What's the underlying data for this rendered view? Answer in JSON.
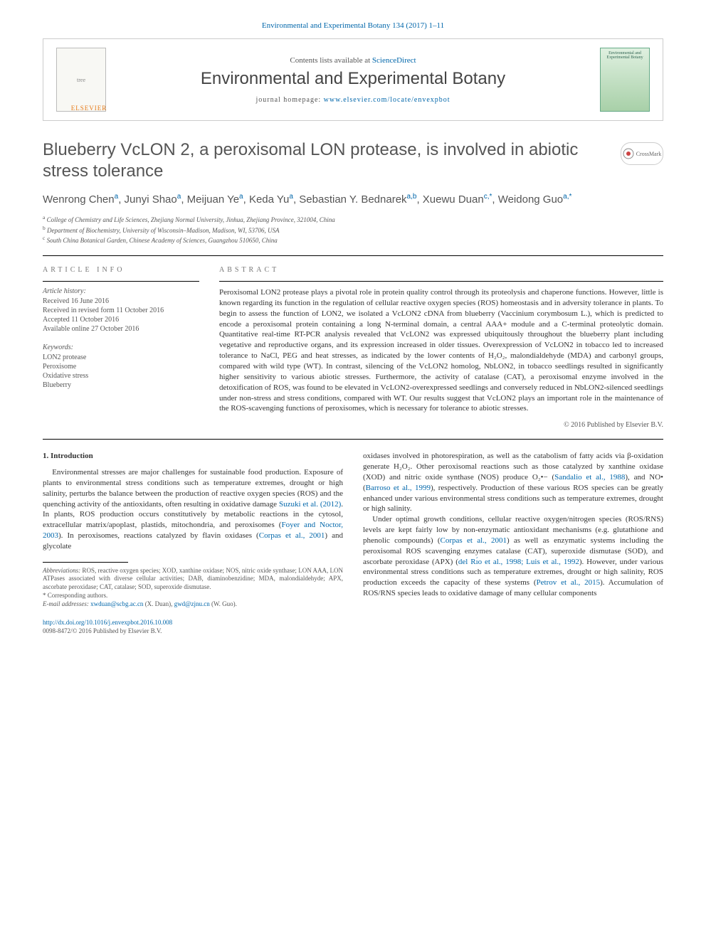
{
  "top_link": {
    "prefix": "",
    "journal": "Environmental and Experimental Botany 134 (2017) 1–11",
    "href": "#"
  },
  "header": {
    "contents_prefix": "Contents lists available at ",
    "contents_link": "ScienceDirect",
    "journal_name": "Environmental and Experimental Botany",
    "homepage_prefix": "journal homepage: ",
    "homepage_link": "www.elsevier.com/locate/envexpbot",
    "elsevier": "ELSEVIER",
    "cover_label": "Environmental and Experimental Botany"
  },
  "title": "Blueberry VcLON 2, a peroxisomal LON protease, is involved in abiotic stress tolerance",
  "crossmark": "CrossMark",
  "authors_html": "Wenrong Chen<sup>a</sup>, Junyi Shao<sup>a</sup>, Meijuan Ye<sup>a</sup>, Keda Yu<sup>a</sup>, Sebastian Y. Bednarek<sup>a,b</sup>, Xuewu Duan<sup>c,*</sup>, Weidong Guo<sup>a,*</sup>",
  "affiliations": {
    "a": "College of Chemistry and Life Sciences, Zhejiang Normal University, Jinhua, Zhejiang Province, 321004, China",
    "b": "Department of Biochemistry, University of Wisconsin–Madison, Madison, WI, 53706, USA",
    "c": "South China Botanical Garden, Chinese Academy of Sciences, Guangzhou 510650, China"
  },
  "article_info": {
    "label": "ARTICLE INFO",
    "history_label": "Article history:",
    "history": [
      "Received 16 June 2016",
      "Received in revised form 11 October 2016",
      "Accepted 11 October 2016",
      "Available online 27 October 2016"
    ],
    "keywords_label": "Keywords:",
    "keywords": [
      "LON2 protease",
      "Peroxisome",
      "Oxidative stress",
      "Blueberry"
    ]
  },
  "abstract": {
    "label": "ABSTRACT",
    "text": "Peroxisomal LON2 protease plays a pivotal role in protein quality control through its proteolysis and chaperone functions. However, little is known regarding its function in the regulation of cellular reactive oxygen species (ROS) homeostasis and in adversity tolerance in plants. To begin to assess the function of LON2, we isolated a VcLON2 cDNA from blueberry (Vaccinium corymbosum L.), which is predicted to encode a peroxisomal protein containing a long N-terminal domain, a central AAA+ module and a C-terminal proteolytic domain. Quantitative real-time RT-PCR analysis revealed that VcLON2 was expressed ubiquitously throughout the blueberry plant including vegetative and reproductive organs, and its expression increased in older tissues. Overexpression of VcLON2 in tobacco led to increased tolerance to NaCl, PEG and heat stresses, as indicated by the lower contents of H₂O₂, malondialdehyde (MDA) and carbonyl groups, compared with wild type (WT). In contrast, silencing of the VcLON2 homolog, NbLON2, in tobacco seedlings resulted in significantly higher sensitivity to various abiotic stresses. Furthermore, the activity of catalase (CAT), a peroxisomal enzyme involved in the detoxification of ROS, was found to be elevated in VcLON2-overexpressed seedlings and conversely reduced in NbLON2-silenced seedlings under non-stress and stress conditions, compared with WT. Our results suggest that VcLON2 plays an important role in the maintenance of the ROS-scavenging functions of peroxisomes, which is necessary for tolerance to abiotic stresses.",
    "copyright": "© 2016 Published by Elsevier B.V."
  },
  "intro": {
    "heading": "1. Introduction",
    "col1_p1_pre": "Environmental stresses are major challenges for sustainable food production. Exposure of plants to environmental stress conditions such as temperature extremes, drought or high salinity, perturbs the balance between the production of reactive oxygen species (ROS) and the quenching activity of the antioxidants, often resulting in oxidative damage ",
    "col1_p1_link1": "Suzuki et al. (2012)",
    "col1_p1_mid1": ". In plants, ROS production occurs constitutively by metabolic reactions in the cytosol, extracellular matrix/apoplast, plastids, mitochondria, and peroxisomes (",
    "col1_p1_link2": "Foyer and Noctor, 2003",
    "col1_p1_mid2": "). In peroxisomes, reactions catalyzed by flavin oxidases (",
    "col1_p1_link3": "Corpas et al., 2001",
    "col1_p1_post": ") and glycolate",
    "col2_p1_pre": "oxidases involved in photorespiration, as well as the catabolism of fatty acids via β-oxidation generate H₂O₂. Other peroxisomal reactions such as those catalyzed by xanthine oxidase (XOD) and nitric oxide synthase (NOS) produce O₂•− (",
    "col2_p1_link1": "Sandalio et al., 1988",
    "col2_p1_mid1": "), and NO• (",
    "col2_p1_link2": "Barroso et al., 1999",
    "col2_p1_post1": "), respectively. Production of these various ROS species can be greatly enhanced under various environmental stress conditions such as temperature extremes, drought or high salinity.",
    "col2_p2_pre": "Under optimal growth conditions, cellular reactive oxygen/nitrogen species (ROS/RNS) levels are kept fairly low by non-enzymatic antioxidant mechanisms (e.g. glutathione and phenolic compounds) (",
    "col2_p2_link1": "Corpas et al., 2001",
    "col2_p2_mid1": ") as well as enzymatic systems including the peroxisomal ROS scavenging enzymes catalase (CAT), superoxide dismutase (SOD), and ascorbate peroxidase (APX) (",
    "col2_p2_link2": "del Rı́o et al., 1998; Luis et al., 1992",
    "col2_p2_mid2": "). However, under various environmental stress conditions such as temperature extremes, drought or high salinity, ROS production exceeds the capacity of these systems (",
    "col2_p2_link3": "Petrov et al., 2015",
    "col2_p2_post": "). Accumulation of ROS/RNS species leads to oxidative damage of many cellular components"
  },
  "footnotes": {
    "abbrev_label": "Abbreviations:",
    "abbrev": " ROS, reactive oxygen species; XOD, xanthine oxidase; NOS, nitric oxide synthase; LON AAA, LON ATPases associated with diverse cellular activities; DAB, diaminobenzidine; MDA, malondialdehyde; APX, ascorbate peroxidase; CAT, catalase; SOD, superoxide dismutase.",
    "corr": "* Corresponding authors.",
    "email_label": "E-mail addresses:",
    "email1": "xwduan@scbg.ac.cn",
    "email1_who": " (X. Duan), ",
    "email2": "gwd@zjnu.cn",
    "email2_who": " (W. Guo)."
  },
  "doi": {
    "link": "http://dx.doi.org/10.1016/j.envexpbot.2016.10.008",
    "issn": "0098-8472/© 2016 Published by Elsevier B.V."
  },
  "colors": {
    "link": "#0066aa",
    "text": "#333333",
    "muted": "#555555"
  }
}
